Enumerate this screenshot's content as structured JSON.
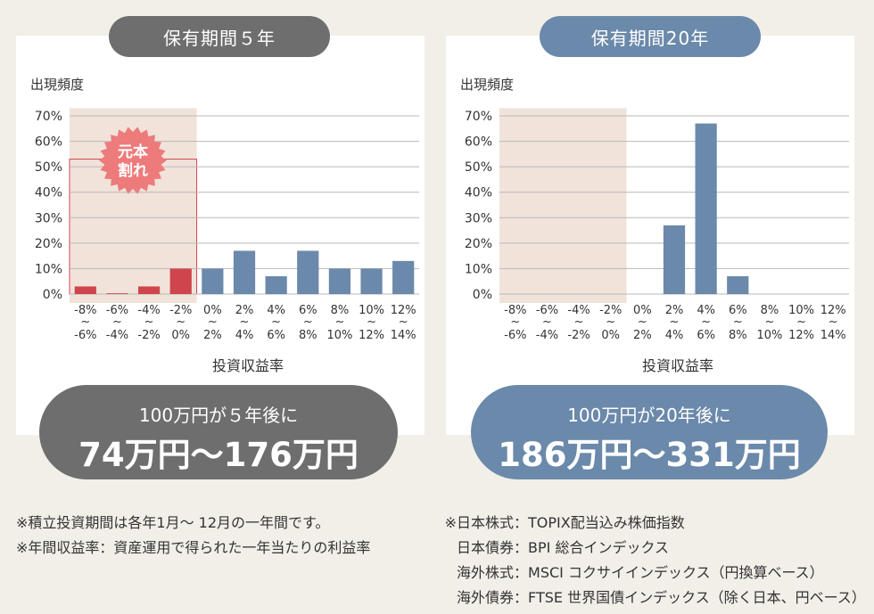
{
  "left_panel": {
    "header": "保有期間５年",
    "result_line1": "100万円が５年後に",
    "result_line2": "74万円〜176万円"
  },
  "right_panel": {
    "header": "保有期間20年",
    "result_line1": "100万円が20年後に",
    "result_line2": "186万円〜331万円"
  },
  "badge": {
    "line1": "元本",
    "line2": "割れ"
  },
  "notes": [
    "※積立投資期間は各年1月〜 12月の一年間です。",
    "※年間収益率：資産運用で得られた一年当たりの利益率"
  ],
  "footnotes": [
    {
      "label": "※日本株式",
      "value": "TOPIX配当込み株価指数"
    },
    {
      "label": "日本債券",
      "value": "BPI 総合インデックス"
    },
    {
      "label": "海外株式",
      "value": "MSCI コクサイインデックス（円換算ベース）"
    },
    {
      "label": "海外債券",
      "value": "FTSE 世界国債インデックス（除く日本、円ベース）"
    }
  ],
  "colors": {
    "loss": "#d0454d",
    "gain": "#6b89aa",
    "shade": "#f1e3da",
    "badge": "#ee7b7b"
  },
  "chart_data": [
    {
      "type": "bar",
      "title": "保有期間５年",
      "ylabel": "出現頻度",
      "xlabel": "投資収益率",
      "ylim": [
        0,
        70
      ],
      "yticks": [
        "0%",
        "10%",
        "20%",
        "30%",
        "40%",
        "50%",
        "60%",
        "70%"
      ],
      "categories": [
        {
          "from": "-8%",
          "to": "-6%"
        },
        {
          "from": "-6%",
          "to": "-4%"
        },
        {
          "from": "-4%",
          "to": "-2%"
        },
        {
          "from": "-2%",
          "to": "0%"
        },
        {
          "from": "0%",
          "to": "2%"
        },
        {
          "from": "2%",
          "to": "4%"
        },
        {
          "from": "4%",
          "to": "6%"
        },
        {
          "from": "6%",
          "to": "8%"
        },
        {
          "from": "8%",
          "to": "10%"
        },
        {
          "from": "10%",
          "to": "12%"
        },
        {
          "from": "12%",
          "to": "14%"
        }
      ],
      "values": [
        3,
        0.3,
        3,
        10,
        10,
        17,
        7,
        17,
        10,
        10,
        13
      ],
      "loss_region": {
        "categories": 4,
        "ymax": 73,
        "box_ymax": 53
      },
      "grid": true
    },
    {
      "type": "bar",
      "title": "保有期間20年",
      "ylabel": "出現頻度",
      "xlabel": "投資収益率",
      "ylim": [
        0,
        70
      ],
      "yticks": [
        "0%",
        "10%",
        "20%",
        "30%",
        "40%",
        "50%",
        "60%",
        "70%"
      ],
      "categories": [
        {
          "from": "-8%",
          "to": "-6%"
        },
        {
          "from": "-6%",
          "to": "-4%"
        },
        {
          "from": "-4%",
          "to": "-2%"
        },
        {
          "from": "-2%",
          "to": "0%"
        },
        {
          "from": "0%",
          "to": "2%"
        },
        {
          "from": "2%",
          "to": "4%"
        },
        {
          "from": "4%",
          "to": "6%"
        },
        {
          "from": "6%",
          "to": "8%"
        },
        {
          "from": "8%",
          "to": "10%"
        },
        {
          "from": "10%",
          "to": "12%"
        },
        {
          "from": "12%",
          "to": "14%"
        }
      ],
      "values": [
        0,
        0,
        0,
        0,
        0,
        27,
        67,
        7,
        0,
        0,
        0
      ],
      "loss_region": {
        "categories": 4,
        "ymax": 73
      },
      "grid": true
    }
  ]
}
